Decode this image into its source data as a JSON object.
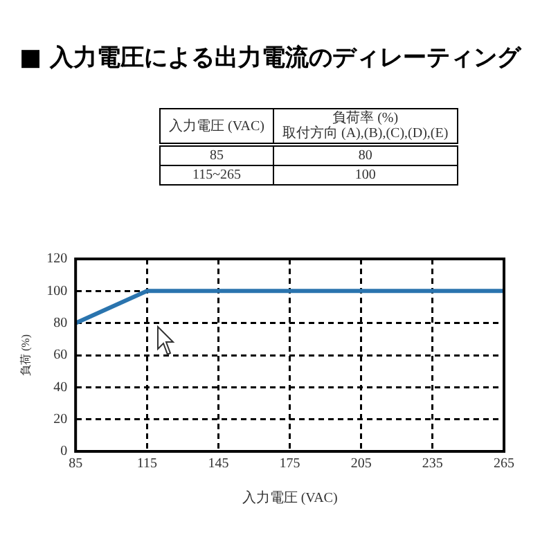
{
  "chart_data": {
    "type": "line",
    "title": "■ 入力電圧による出力電流のディレーティング",
    "xlabel": "入力電圧 (VAC)",
    "ylabel": "負荷 (%)",
    "x": [
      85,
      115,
      265
    ],
    "series": [
      {
        "color": "#2a74ae",
        "values": [
          80,
          100,
          100
        ]
      }
    ],
    "xlim": [
      85,
      265
    ],
    "xticks": [
      85,
      115,
      145,
      175,
      205,
      235,
      265
    ],
    "ylim": [
      0,
      120
    ],
    "yticks": [
      0,
      20,
      40,
      60,
      80,
      100,
      120
    ],
    "grid": true,
    "marker": "none",
    "line_style": "solid",
    "legend": false,
    "annotations": [
      "入力電圧 (VAC)",
      "負荷率 (%)",
      "取付方向  (A),(B),(C),(D),(E)",
      "85",
      "80",
      "115~265",
      "100"
    ]
  }
}
